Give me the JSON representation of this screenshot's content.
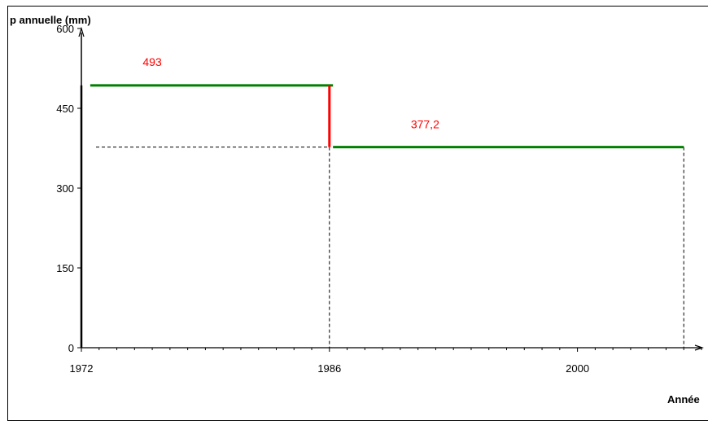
{
  "chart_data": {
    "type": "line",
    "ylabel": "p annuelle (mm)",
    "xlabel": "Année",
    "xlim": [
      1972,
      2007
    ],
    "ylim": [
      0,
      600
    ],
    "y_ticks": [
      0,
      150,
      300,
      450,
      600
    ],
    "x_tick_labels": [
      1972,
      1986,
      2000
    ],
    "grid": false,
    "segments": [
      {
        "name": "493",
        "x": [
          1972.5,
          1986.2
        ],
        "y": [
          493,
          493
        ],
        "color": "#008000"
      },
      {
        "name": "377,2",
        "x": [
          1986.2,
          2006
        ],
        "y": [
          377.2,
          377.2
        ],
        "color": "#008000"
      }
    ],
    "break": {
      "x": 1986,
      "from": 493,
      "to": 377.2,
      "color": "#ff0000"
    },
    "reference_lines": {
      "color": "#000000",
      "style": "dashed"
    }
  }
}
